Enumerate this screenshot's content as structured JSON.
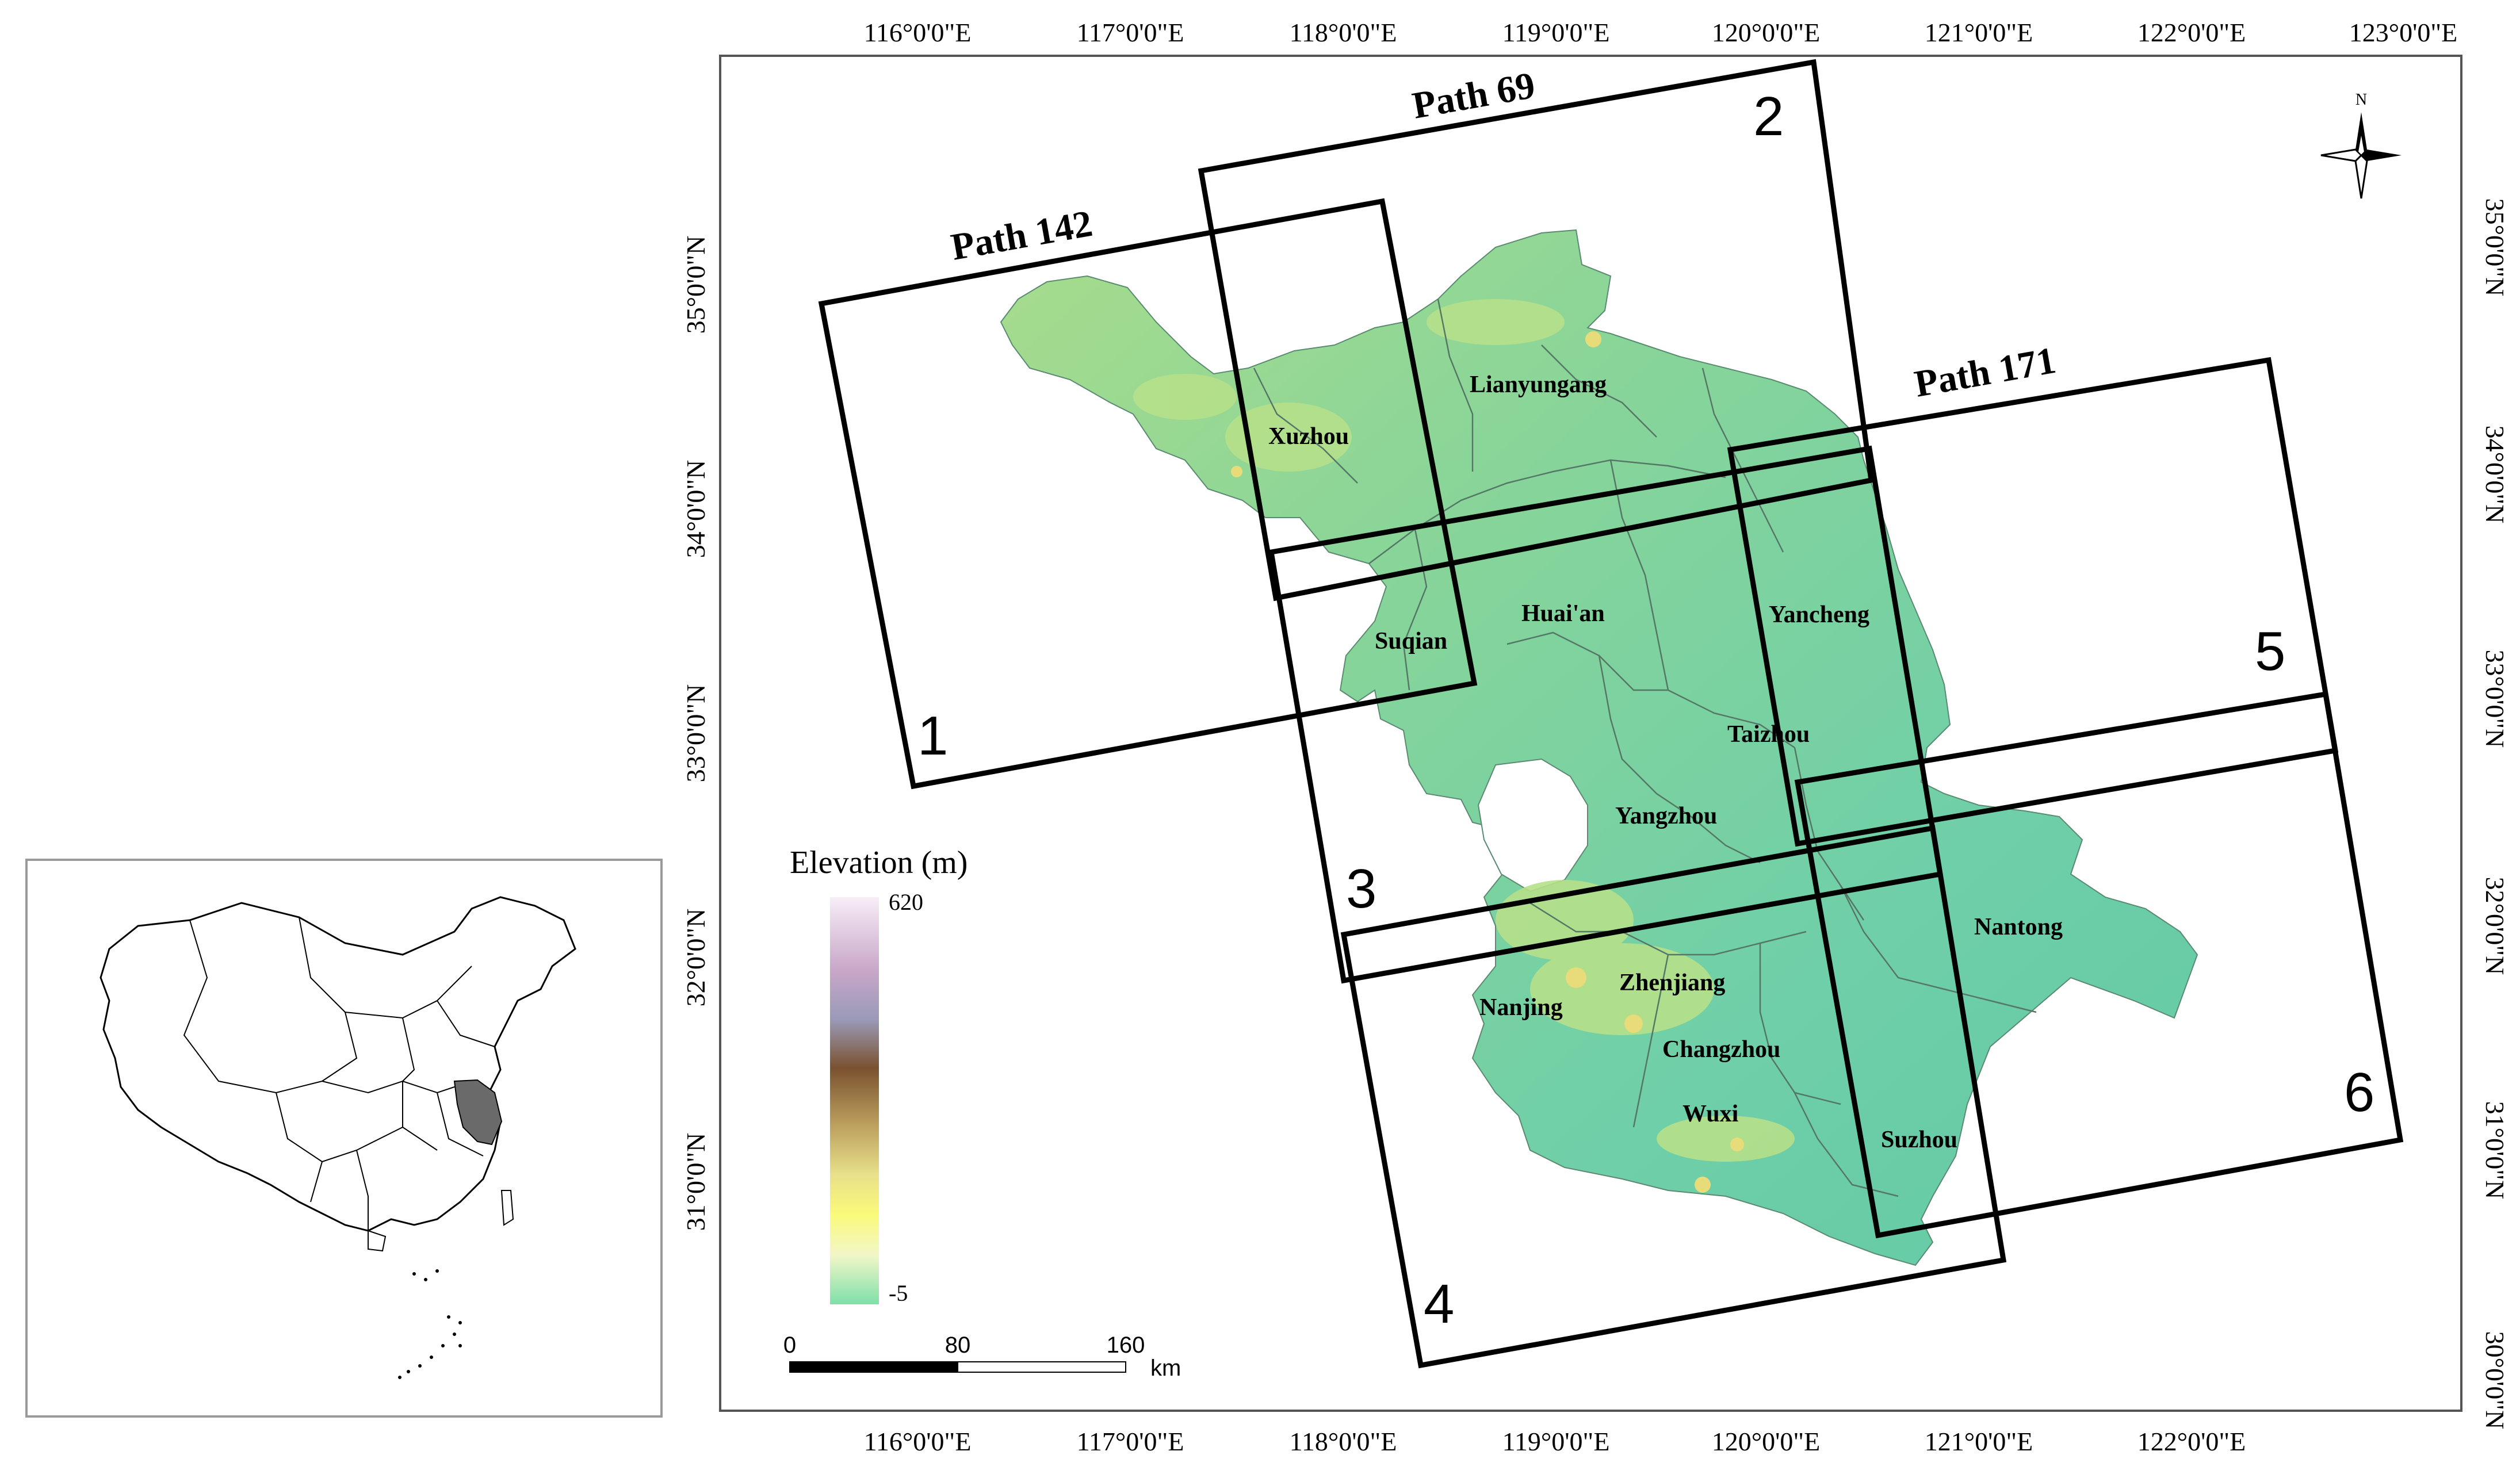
{
  "main_map": {
    "lon_ticks": [
      "116°0'0\"E",
      "117°0'0\"E",
      "118°0'0\"E",
      "119°0'0\"E",
      "120°0'0\"E",
      "121°0'0\"E",
      "122°0'0\"E",
      "123°0'0\"E"
    ],
    "lat_ticks": [
      "35°0'0\"N",
      "34°0'0\"N",
      "33°0'0\"N",
      "32°0'0\"N",
      "31°0'0\"N",
      "30°0'0\"N"
    ],
    "paths": [
      {
        "label": "Path 142"
      },
      {
        "label": "Path 69"
      },
      {
        "label": "Path 171"
      }
    ],
    "scenes": [
      "1",
      "2",
      "3",
      "4",
      "5",
      "6"
    ],
    "cities": [
      "Lianyungang",
      "Xuzhou",
      "Suqian",
      "Huai'an",
      "Yancheng",
      "Taizhou",
      "Yangzhou",
      "Nantong",
      "Zhenjiang",
      "Nanjing",
      "Changzhou",
      "Wuxi",
      "Suzhou"
    ],
    "north_arrow": {
      "letter": "N",
      "icon": "compass-rose-icon"
    }
  },
  "legend": {
    "title": "Elevation (m)",
    "max": "620",
    "min": "-5",
    "colors": [
      "#f7eef7",
      "#c8a6c8",
      "#9a9ab8",
      "#7a5230",
      "#b89a5a",
      "#e8e08a",
      "#fafa7a",
      "#f2f6c8",
      "#7ee0a8"
    ]
  },
  "scale_bar": {
    "labels": [
      "0",
      "80",
      "160"
    ],
    "unit": "km"
  },
  "colors": {
    "province_fill": "#6fcfa8",
    "highland_fill": "#b6e08a",
    "inset_highlight": "#6a6a6a"
  }
}
